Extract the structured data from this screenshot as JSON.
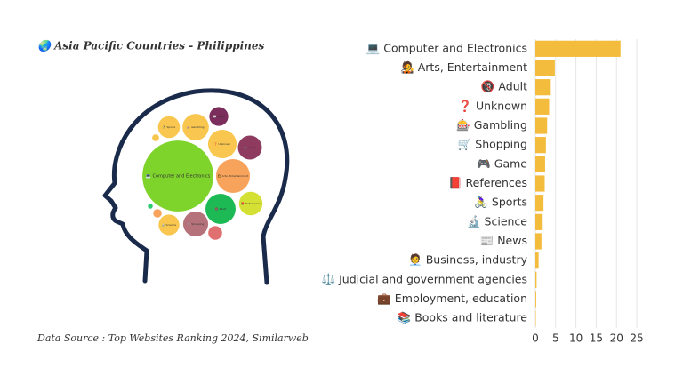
{
  "chart_data": [
    {
      "type": "bubble",
      "title": "🌏 Asia Pacific Countries - Philippines",
      "source": "Data Source : Top Websites Ranking 2024, Similarweb",
      "categories": [
        "💻 Computer and Electronics",
        "🧑‍🎤 Arts, Entertainment",
        "🔞 Adult",
        "❓ Unknown",
        "🎰 Gambling",
        "🛒 Shopping",
        "🎮 Game",
        "📕 References",
        "🚴‍♀️ Sports",
        "🔬 Science",
        "📰 News",
        "🧑‍💼 Business, industry",
        "⚖️ Judicial and government agencies",
        "💼 Employment, education",
        "📚 Books and literature"
      ],
      "values": [
        21,
        4.8,
        3.8,
        3.4,
        2.9,
        2.6,
        2.4,
        2.3,
        2.0,
        1.8,
        1.5,
        0.8,
        0.3,
        0.2,
        0.1
      ],
      "colors": [
        "#7fd42c",
        "#f7a35c",
        "#1db954",
        "#f9c74f",
        "#f9c74f",
        "#b5727a",
        "#8e3b5f",
        "#d4e034",
        "#f9c74f",
        "#f9c74f",
        "#7b2d5c",
        "#e07070",
        "#f7a35c",
        "#f9c74f",
        "#2ecc71"
      ]
    },
    {
      "type": "bar",
      "categories": [
        "💻 Computer and Electronics",
        "🧑‍🎤 Arts, Entertainment",
        "🔞 Adult",
        "❓ Unknown",
        "🎰 Gambling",
        "🛒 Shopping",
        "🎮 Game",
        "📕 References",
        "🚴‍♀️ Sports",
        "🔬 Science",
        "📰 News",
        "🧑‍💼 Business, industry",
        "⚖️ Judicial and government agencies",
        "💼 Employment, education",
        "📚 Books and literature"
      ],
      "values": [
        21,
        4.8,
        3.8,
        3.4,
        2.9,
        2.6,
        2.4,
        2.3,
        2.0,
        1.8,
        1.5,
        0.8,
        0.3,
        0.2,
        0.1
      ],
      "color": "#f4bc3c",
      "xlim": [
        0,
        26
      ],
      "xticks": [
        0,
        5,
        10,
        15,
        20,
        25
      ],
      "grid": true
    }
  ]
}
